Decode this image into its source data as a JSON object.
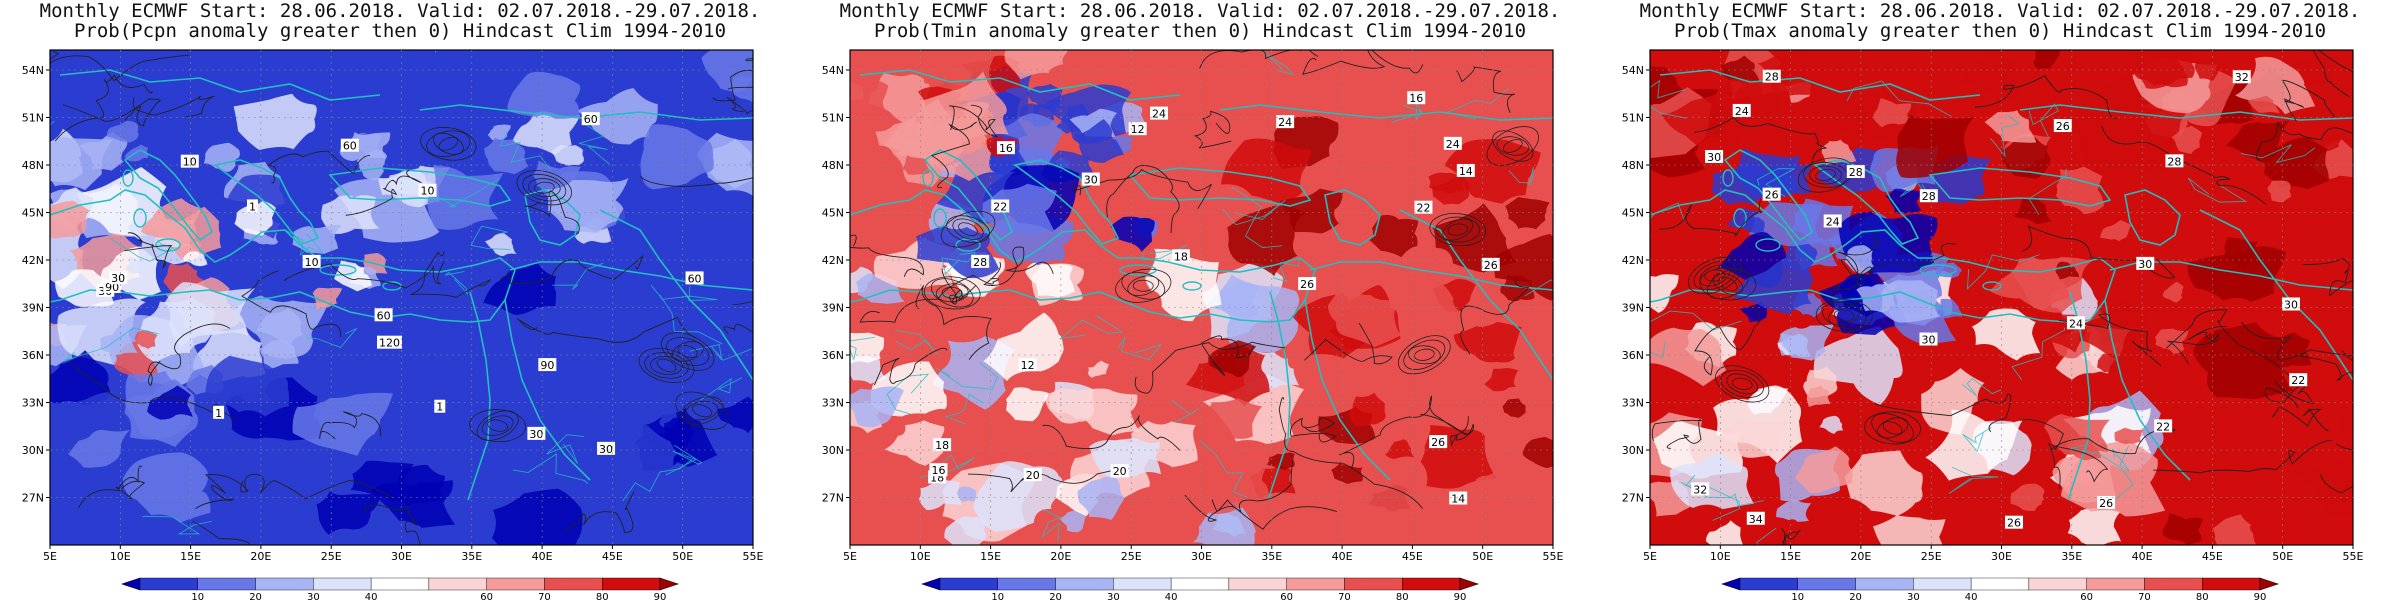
{
  "panels": [
    {
      "title_line1": "Monthly ECMWF Start: 28.06.2018. Valid: 02.07.2018.-29.07.2018.",
      "title_line2": "Prob(Pcpn anomaly greater then 0) Hindcast Clim 1994-2010",
      "variable": "Pcpn",
      "contour_labels": [
        "60",
        "30",
        "10",
        "60",
        "90",
        "60",
        "30",
        "10",
        "1",
        "60",
        "30",
        "10",
        "90",
        "120",
        "1",
        "1",
        "30"
      ]
    },
    {
      "title_line1": "Monthly ECMWF Start: 28.06.2018. Valid: 02.07.2018.-29.07.2018.",
      "title_line2": "Prob(Tmin anomaly greater then 0) Hindcast Clim 1994-2010",
      "variable": "Tmin",
      "contour_labels": [
        "18",
        "16",
        "20",
        "14",
        "12",
        "16",
        "18",
        "24",
        "26",
        "20",
        "14",
        "16",
        "22",
        "24",
        "26",
        "28",
        "30",
        "24",
        "22",
        "26",
        "18",
        "12"
      ]
    },
    {
      "title_line1": "Monthly ECMWF Start: 28.06.2018. Valid: 02.07.2018.-29.07.2018.",
      "title_line2": "Prob(Tmax anomaly greater then 0) Hindcast Clim 1994-2010",
      "variable": "Tmax",
      "contour_labels": [
        "24",
        "26",
        "30",
        "28",
        "22",
        "32",
        "34",
        "26",
        "24",
        "28",
        "30",
        "32",
        "26",
        "30",
        "28",
        "24",
        "22",
        "26",
        "28",
        "30"
      ]
    }
  ],
  "map": {
    "lon_ticks": [
      "5E",
      "10E",
      "15E",
      "20E",
      "25E",
      "30E",
      "35E",
      "40E",
      "45E",
      "50E",
      "55E"
    ],
    "lat_ticks": [
      "54N",
      "51N",
      "48N",
      "45N",
      "42N",
      "39N",
      "36N",
      "33N",
      "30N",
      "27N"
    ],
    "coast_color": "#20c0c0",
    "contour_color": "#222222"
  },
  "colorbar": {
    "labels": [
      "10",
      "20",
      "30",
      "40",
      "60",
      "70",
      "80",
      "90"
    ],
    "colors": [
      "#0000b4",
      "#2b3cd0",
      "#6878e8",
      "#a8b4f4",
      "#dde3fb",
      "#ffffff",
      "#fbd5d5",
      "#f49a9a",
      "#e85050",
      "#d00c0c",
      "#a00000"
    ]
  }
}
